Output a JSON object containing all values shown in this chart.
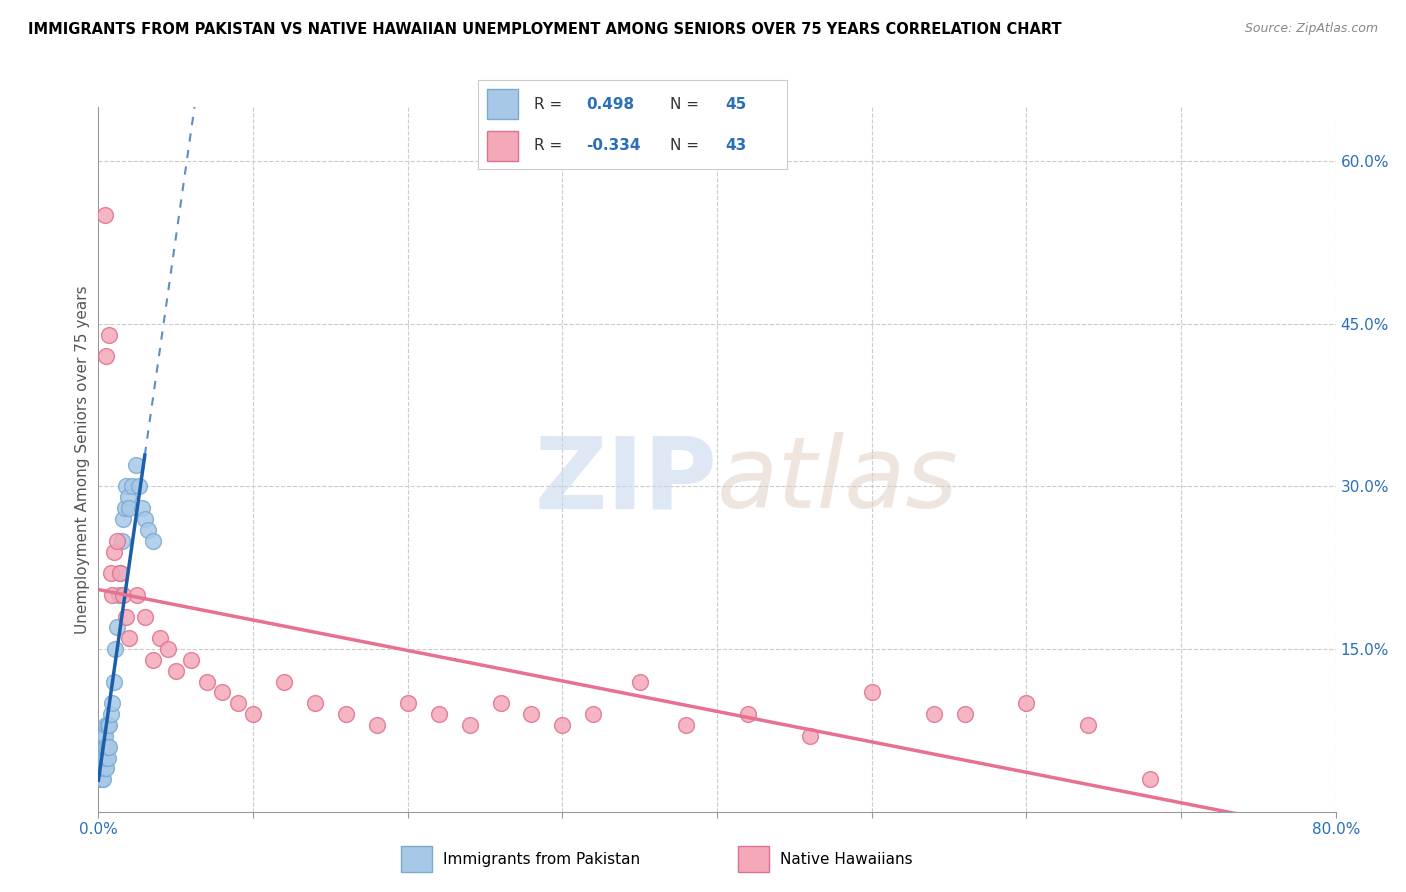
{
  "title": "IMMIGRANTS FROM PAKISTAN VS NATIVE HAWAIIAN UNEMPLOYMENT AMONG SENIORS OVER 75 YEARS CORRELATION CHART",
  "source": "Source: ZipAtlas.com",
  "ylabel": "Unemployment Among Seniors over 75 years",
  "xlim": [
    0.0,
    0.8
  ],
  "ylim": [
    0.0,
    0.65
  ],
  "R_blue": 0.498,
  "N_blue": 45,
  "R_pink": -0.334,
  "N_pink": 43,
  "blue_dot_color": "#a8c8e8",
  "blue_dot_edge": "#7aaad0",
  "pink_dot_color": "#f4a8b8",
  "pink_dot_edge": "#e07090",
  "blue_line_color": "#1a5fa8",
  "pink_line_color": "#e87090",
  "pakistan_x": [
    0.001,
    0.001,
    0.001,
    0.002,
    0.002,
    0.002,
    0.002,
    0.003,
    0.003,
    0.003,
    0.003,
    0.003,
    0.004,
    0.004,
    0.004,
    0.004,
    0.005,
    0.005,
    0.005,
    0.005,
    0.006,
    0.006,
    0.006,
    0.007,
    0.007,
    0.008,
    0.009,
    0.01,
    0.011,
    0.012,
    0.013,
    0.014,
    0.015,
    0.016,
    0.017,
    0.018,
    0.019,
    0.02,
    0.022,
    0.024,
    0.026,
    0.028,
    0.03,
    0.032,
    0.035
  ],
  "pakistan_y": [
    0.03,
    0.04,
    0.05,
    0.03,
    0.04,
    0.05,
    0.06,
    0.03,
    0.04,
    0.05,
    0.06,
    0.07,
    0.04,
    0.05,
    0.06,
    0.07,
    0.04,
    0.05,
    0.06,
    0.08,
    0.05,
    0.06,
    0.08,
    0.06,
    0.08,
    0.09,
    0.1,
    0.12,
    0.15,
    0.17,
    0.2,
    0.22,
    0.25,
    0.27,
    0.28,
    0.3,
    0.29,
    0.28,
    0.3,
    0.32,
    0.3,
    0.28,
    0.27,
    0.26,
    0.25
  ],
  "hawaiian_x": [
    0.004,
    0.005,
    0.007,
    0.008,
    0.009,
    0.01,
    0.012,
    0.014,
    0.016,
    0.018,
    0.02,
    0.025,
    0.03,
    0.035,
    0.04,
    0.045,
    0.05,
    0.06,
    0.07,
    0.08,
    0.09,
    0.1,
    0.12,
    0.14,
    0.16,
    0.18,
    0.2,
    0.22,
    0.24,
    0.26,
    0.28,
    0.3,
    0.32,
    0.35,
    0.38,
    0.42,
    0.46,
    0.5,
    0.54,
    0.56,
    0.6,
    0.64,
    0.68
  ],
  "hawaiian_y": [
    0.55,
    0.42,
    0.44,
    0.22,
    0.2,
    0.24,
    0.25,
    0.22,
    0.2,
    0.18,
    0.16,
    0.2,
    0.18,
    0.14,
    0.16,
    0.15,
    0.13,
    0.14,
    0.12,
    0.11,
    0.1,
    0.09,
    0.12,
    0.1,
    0.09,
    0.08,
    0.1,
    0.09,
    0.08,
    0.1,
    0.09,
    0.08,
    0.09,
    0.12,
    0.08,
    0.09,
    0.07,
    0.11,
    0.09,
    0.09,
    0.1,
    0.08,
    0.03
  ]
}
